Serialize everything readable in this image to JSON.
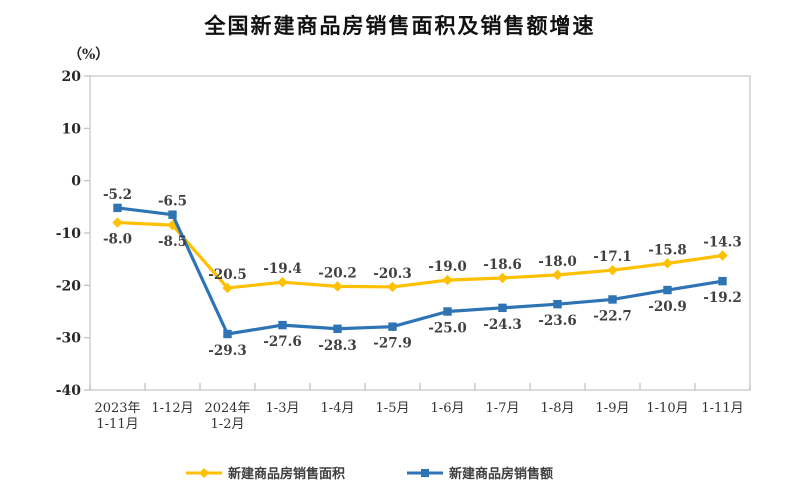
{
  "title": "全国新建商品房销售面积及销售额增速",
  "y_axis_unit": "（%）",
  "colors": {
    "sales_area_line": "#FFC000",
    "sales_amount_line": "#2E74B5",
    "plot_border": "#C9C9C9",
    "tick_mark": "#BFBFBF",
    "axis_text": "#262626",
    "data_label_text": "#404040"
  },
  "chart_data": {
    "type": "line",
    "title": "全国新建商品房销售面积及销售额增速",
    "ylabel": "（%）",
    "ylim": [
      -40,
      20
    ],
    "ytick_step": 10,
    "yticks": [
      20,
      10,
      0,
      -10,
      -20,
      -30,
      -40
    ],
    "grid": false,
    "legend_position": "bottom",
    "categories": [
      "2023年\n1-11月",
      "1-12月",
      "2024年\n1-2月",
      "1-3月",
      "1-4月",
      "1-5月",
      "1-6月",
      "1-7月",
      "1-8月",
      "1-9月",
      "1-10月",
      "1-11月"
    ],
    "series": [
      {
        "name": "新建商品房销售面积",
        "color": "#FFC000",
        "marker": "diamond",
        "values": [
          -8.0,
          -8.5,
          -20.5,
          -19.4,
          -20.2,
          -20.3,
          -19.0,
          -18.6,
          -18.0,
          -17.1,
          -15.8,
          -14.3
        ]
      },
      {
        "name": "新建商品房销售额",
        "color": "#2E74B5",
        "marker": "square",
        "values": [
          -5.2,
          -6.5,
          -29.3,
          -27.6,
          -28.3,
          -27.9,
          -25.0,
          -24.3,
          -23.6,
          -22.7,
          -20.9,
          -19.2
        ]
      }
    ]
  }
}
